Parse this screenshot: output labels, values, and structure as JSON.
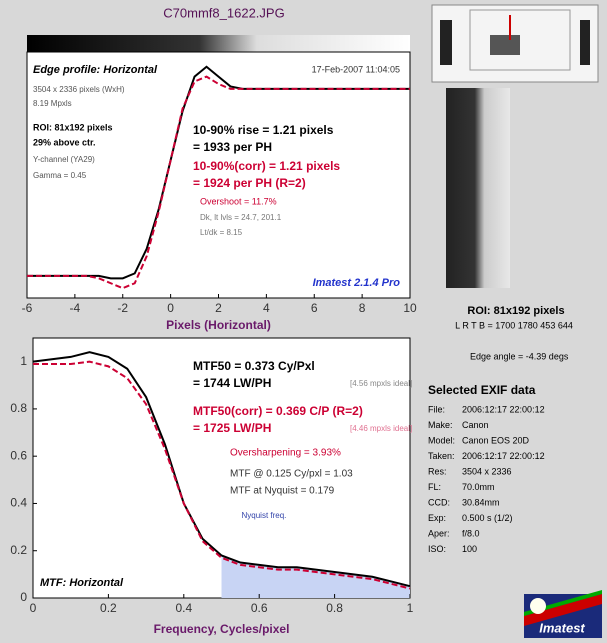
{
  "header": {
    "title": "C70mmf8_1622.JPG"
  },
  "chart_data": [
    {
      "type": "line",
      "title": "Edge profile: Horizontal",
      "x_label": "Pixels (Horizontal)",
      "x": [
        -6,
        -5.5,
        -5,
        -4.5,
        -4,
        -3.5,
        -3,
        -2.5,
        -2,
        -1.5,
        -1,
        -0.5,
        0,
        0.5,
        1,
        1.5,
        2,
        2.5,
        3,
        3.5,
        4,
        4.5,
        5,
        5.5,
        6,
        6.5,
        7,
        7.5,
        8,
        8.5,
        9,
        9.5,
        10
      ],
      "series": [
        {
          "color": "#000000",
          "linestyle": "solid",
          "values": [
            0.09,
            0.09,
            0.09,
            0.09,
            0.09,
            0.09,
            0.09,
            0.08,
            0.08,
            0.1,
            0.2,
            0.36,
            0.56,
            0.76,
            0.9,
            0.94,
            0.9,
            0.86,
            0.85,
            0.85,
            0.85,
            0.85,
            0.85,
            0.85,
            0.85,
            0.85,
            0.85,
            0.85,
            0.85,
            0.85,
            0.85,
            0.85,
            0.85
          ]
        },
        {
          "color": "#cc0033",
          "linestyle": "dashed",
          "values": [
            0.09,
            0.09,
            0.09,
            0.09,
            0.09,
            0.09,
            0.08,
            0.06,
            0.04,
            0.06,
            0.17,
            0.35,
            0.56,
            0.77,
            0.88,
            0.9,
            0.87,
            0.85,
            0.85,
            0.85,
            0.85,
            0.85,
            0.85,
            0.85,
            0.85,
            0.85,
            0.85,
            0.85,
            0.85,
            0.85,
            0.85,
            0.85,
            0.85
          ]
        }
      ],
      "xlim": [
        -6,
        10
      ],
      "xticks": [
        -6,
        -4,
        -2,
        0,
        2,
        4,
        6,
        8,
        10
      ],
      "ylim": [
        0,
        1
      ],
      "annotations": [
        {
          "text": "17-Feb-2007 11:04:05",
          "color": "#333333"
        },
        {
          "text": "3504 x 2336 pixels (WxH)",
          "color": "#555555"
        },
        {
          "text": "8.19 Mpxls",
          "color": "#555555"
        },
        {
          "text": "ROI: 81x192 pixels",
          "color": "#000000"
        },
        {
          "text": "29% above ctr.",
          "color": "#000000"
        },
        {
          "text": "Y-channel (YA29)",
          "color": "#555555"
        },
        {
          "text": "Gamma = 0.45",
          "color": "#555555"
        },
        {
          "text": "10-90% rise = 1.21 pixels",
          "color": "#000000"
        },
        {
          "text": "= 1933 per PH",
          "color": "#000000"
        },
        {
          "text": "10-90%(corr) = 1.21 pixels",
          "color": "#cc0033"
        },
        {
          "text": "= 1924 per PH  (R=2)",
          "color": "#cc0033"
        },
        {
          "text": "Overshoot = 11.7%",
          "color": "#cc0033"
        },
        {
          "text": "Dk, lt lvls = 24.7, 201.1",
          "color": "#777777"
        },
        {
          "text": "Lt/dk = 8.15",
          "color": "#777777"
        },
        {
          "text": "Imatest 2.1.4 Pro",
          "color": "#2233cc"
        }
      ]
    },
    {
      "type": "line",
      "title": "MTF: Horizontal",
      "x_label": "Frequency, Cycles/pixel",
      "x": [
        0,
        0.05,
        0.1,
        0.15,
        0.2,
        0.25,
        0.3,
        0.35,
        0.4,
        0.45,
        0.5,
        0.55,
        0.6,
        0.65,
        0.7,
        0.75,
        0.8,
        0.85,
        0.9,
        0.95,
        1
      ],
      "series": [
        {
          "color": "#000000",
          "linestyle": "solid",
          "values": [
            1.0,
            1.01,
            1.02,
            1.04,
            1.02,
            0.97,
            0.85,
            0.65,
            0.4,
            0.25,
            0.18,
            0.15,
            0.14,
            0.13,
            0.13,
            0.12,
            0.11,
            0.1,
            0.09,
            0.07,
            0.05
          ]
        },
        {
          "color": "#cc0033",
          "linestyle": "dashed",
          "values": [
            0.99,
            0.99,
            0.99,
            1.0,
            0.98,
            0.93,
            0.82,
            0.63,
            0.4,
            0.24,
            0.17,
            0.14,
            0.13,
            0.12,
            0.12,
            0.11,
            0.1,
            0.09,
            0.08,
            0.06,
            0.04
          ]
        }
      ],
      "xlim": [
        0,
        1
      ],
      "xticks": [
        0,
        0.2,
        0.4,
        0.6,
        0.8,
        1
      ],
      "ylim": [
        0,
        1.1
      ],
      "yticks": [
        0,
        0.2,
        0.4,
        0.6,
        0.8,
        1
      ],
      "nyquist": {
        "x": 0.5,
        "label": "Nyquist freq.",
        "color": "#c8d4f4"
      },
      "annotations": [
        {
          "text": "MTF50 = 0.373 Cy/Pxl",
          "color": "#000000"
        },
        {
          "text": "= 1744 LW/PH",
          "color": "#000000"
        },
        {
          "text": "[4.56 mpxls ideal]",
          "color": "#888888"
        },
        {
          "text": "MTF50(corr) = 0.369 C/P  (R=2)",
          "color": "#cc0033"
        },
        {
          "text": "= 1725 LW/PH",
          "color": "#cc0033"
        },
        {
          "text": "[4.46 mpxls ideal]",
          "color": "#e07090"
        },
        {
          "text": "Oversharpening = 3.93%",
          "color": "#cc0033"
        },
        {
          "text": "MTF @ 0.125 Cy/pxl = 1.03",
          "color": "#333333"
        },
        {
          "text": "MTF at Nyquist = 0.179",
          "color": "#333333"
        }
      ]
    }
  ],
  "side": {
    "roi": "ROI: 81x192 pixels",
    "lrtb": "L R T B = 1700 1780  453 644",
    "edge_angle": "Edge angle = -4.39 degs",
    "exif_title": "Selected EXIF data",
    "exif": [
      [
        "File:",
        "2006:12:17 22:00:12"
      ],
      [
        "Make:",
        "Canon"
      ],
      [
        "Model:",
        "Canon EOS 20D"
      ],
      [
        "Taken:",
        "2006:12:17 22:00:12"
      ],
      [
        "Res:",
        "3504 x 2336"
      ],
      [
        "FL:",
        "70.0mm"
      ],
      [
        "CCD:",
        "30.84mm"
      ],
      [
        "Exp:",
        "0.500 s  (1/2)"
      ],
      [
        "Aper:",
        "f/8.0"
      ],
      [
        "ISO:",
        "100"
      ]
    ],
    "logo": "Imatest"
  }
}
